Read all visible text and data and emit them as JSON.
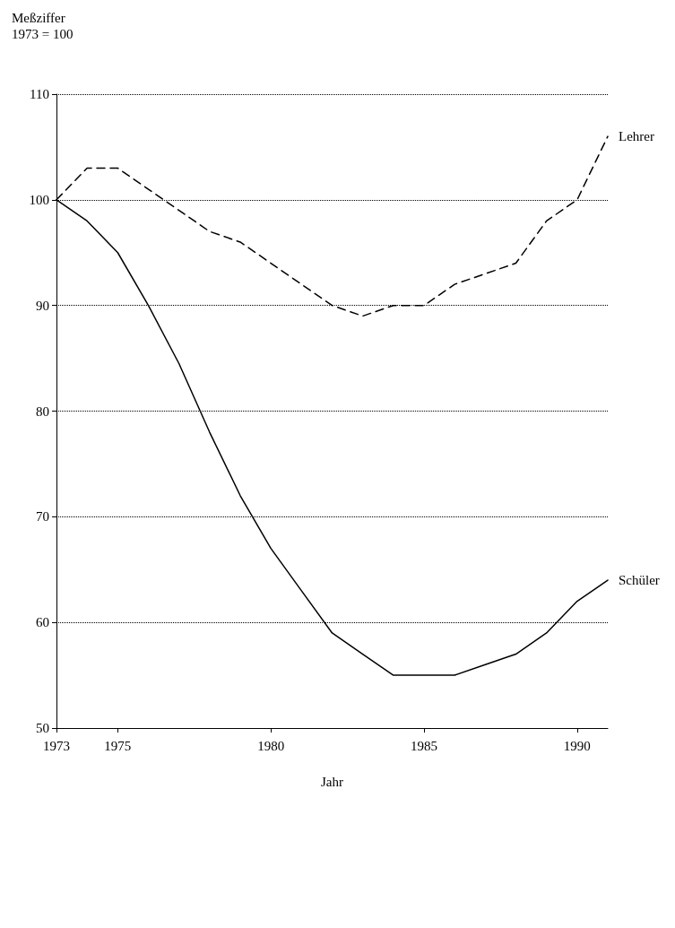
{
  "chart_data": {
    "type": "line",
    "ylabel": "Meßziffer\n1973 = 100",
    "xlabel": "Jahr",
    "x": [
      1973,
      1974,
      1975,
      1976,
      1977,
      1978,
      1979,
      1980,
      1981,
      1982,
      1983,
      1984,
      1985,
      1986,
      1987,
      1988,
      1989,
      1990,
      1991
    ],
    "series": [
      {
        "name": "Lehrer",
        "color": "#000000",
        "line_style": "dashed",
        "values": [
          100,
          103,
          103,
          101,
          99,
          97,
          96,
          94,
          92,
          90,
          89,
          90,
          90,
          92,
          93,
          94,
          98,
          100,
          106
        ]
      },
      {
        "name": "Schüler",
        "color": "#000000",
        "line_style": "solid",
        "values": [
          100,
          98,
          95,
          90,
          84.5,
          78,
          72,
          67,
          63,
          59,
          57,
          55,
          55,
          55,
          56,
          57,
          59,
          62,
          64
        ]
      }
    ],
    "xlim": [
      1973,
      1991
    ],
    "xticks": [
      1973,
      1975,
      1980,
      1985,
      1990
    ],
    "ylim": [
      50,
      110
    ],
    "yticks": [
      50,
      60,
      70,
      80,
      90,
      100,
      110
    ],
    "grid": "y",
    "legend": false,
    "marker": "none"
  }
}
